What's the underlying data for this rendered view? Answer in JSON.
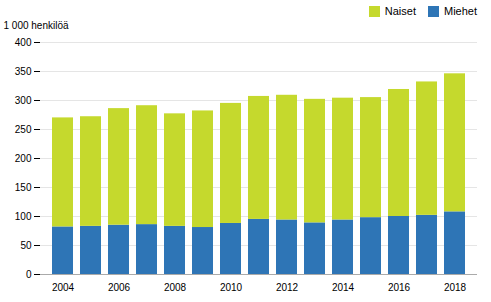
{
  "chart_data": {
    "type": "bar",
    "stacked": true,
    "ylabel": "1 000 henkilöä",
    "categories": [
      "2004",
      null,
      "2006",
      null,
      "2008",
      null,
      "2010",
      null,
      "2012",
      null,
      "2014",
      null,
      "2016",
      null,
      "2018"
    ],
    "series": [
      {
        "name": "Miehet",
        "color": "#2e75b6",
        "values": [
          82,
          83,
          85,
          86,
          83,
          81,
          88,
          95,
          94,
          89,
          94,
          98,
          100,
          102,
          108
        ]
      },
      {
        "name": "Naiset",
        "color": "#c5d92d",
        "values": [
          188,
          189,
          201,
          205,
          194,
          201,
          207,
          212,
          215,
          213,
          210,
          207,
          219,
          230,
          238
        ]
      }
    ],
    "ylim": [
      0,
      400
    ],
    "yticks": [
      0,
      50,
      100,
      150,
      200,
      250,
      300,
      350,
      400
    ],
    "grid": true,
    "legend": "upper right"
  }
}
